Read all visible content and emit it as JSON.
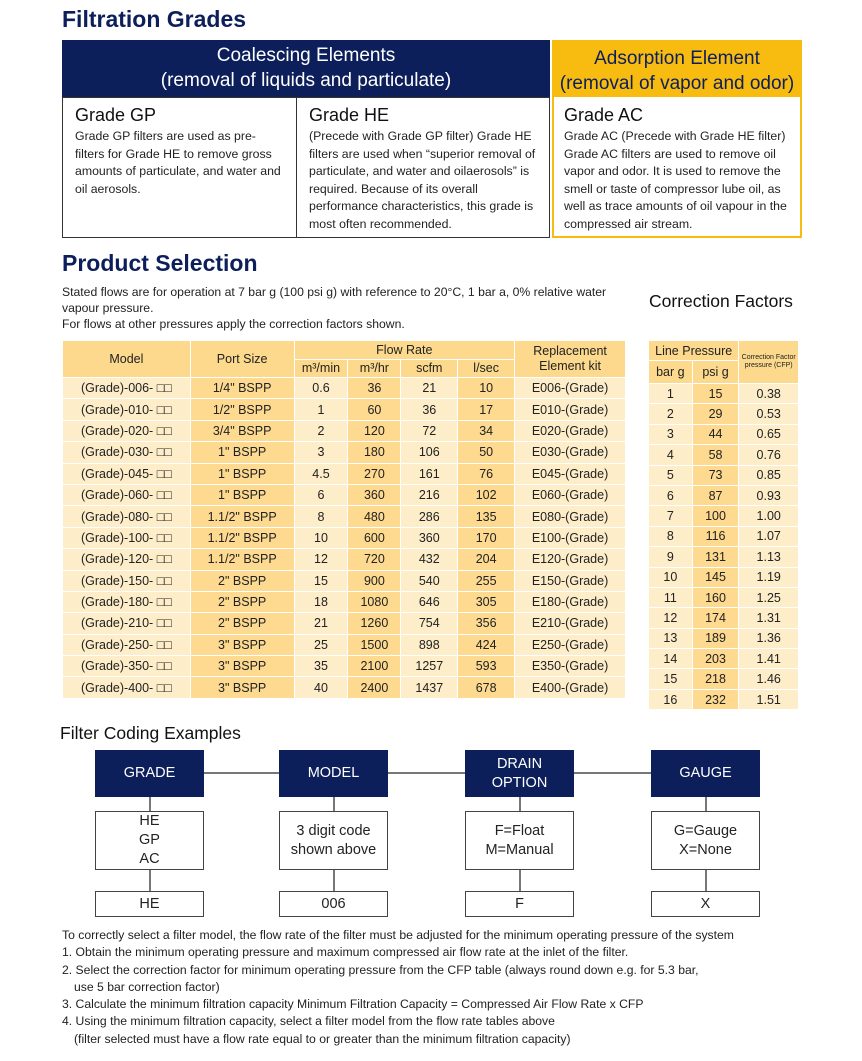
{
  "grades": {
    "title": "Filtration Grades",
    "coalescing": {
      "title": "Coalescing Elements",
      "subtitle": "(removal of liquids and particulate)"
    },
    "adsorption": {
      "title": "Adsorption Element",
      "subtitle": "(removal of vapor and odor)"
    },
    "gp": {
      "title": "Grade GP",
      "text": "Grade GP filters are used as pre-filters for Grade HE to remove gross amounts of particulate, and water and oil aerosols."
    },
    "he": {
      "title": "Grade HE",
      "text": "(Precede with Grade GP filter) Grade HE filters are used when “superior removal of particulate, and water and oilaerosols” is required. Because of its overall performance characteristics, this grade is most often recommended."
    },
    "ac": {
      "title": "Grade AC",
      "text": "Grade AC (Precede with Grade HE filter) Grade AC filters are used to remove oil vapor and odor. It is used to remove the smell or taste of compressor lube oil, as well as trace amounts of oil vapour in the compressed air stream."
    }
  },
  "product": {
    "title": "Product Selection",
    "intro1": "Stated flows are for operation at 7 bar g (100 psi g) with reference to 20°C, 1 bar a, 0% relative water vapour pressure.",
    "intro2": "For flows at other pressures apply the correction factors shown.",
    "headers": {
      "model": "Model",
      "port": "Port Size",
      "flow": "Flow Rate",
      "m3min": "m³/min",
      "m3hr": "m³/hr",
      "scfm": "scfm",
      "lsec": "l/sec",
      "kit": "Replacement Element kit"
    },
    "rows": [
      [
        "(Grade)-006- □□",
        "1/4\" BSPP",
        "0.6",
        "36",
        "21",
        "10",
        "E006-(Grade)"
      ],
      [
        "(Grade)-010- □□",
        "1/2\" BSPP",
        "1",
        "60",
        "36",
        "17",
        "E010-(Grade)"
      ],
      [
        "(Grade)-020- □□",
        "3/4\" BSPP",
        "2",
        "120",
        "72",
        "34",
        "E020-(Grade)"
      ],
      [
        "(Grade)-030- □□",
        "1\" BSPP",
        "3",
        "180",
        "106",
        "50",
        "E030-(Grade)"
      ],
      [
        "(Grade)-045- □□",
        "1\" BSPP",
        "4.5",
        "270",
        "161",
        "76",
        "E045-(Grade)"
      ],
      [
        "(Grade)-060- □□",
        "1\" BSPP",
        "6",
        "360",
        "216",
        "102",
        "E060-(Grade)"
      ],
      [
        "(Grade)-080- □□",
        "1.1/2\" BSPP",
        "8",
        "480",
        "286",
        "135",
        "E080-(Grade)"
      ],
      [
        "(Grade)-100- □□",
        "1.1/2\" BSPP",
        "10",
        "600",
        "360",
        "170",
        "E100-(Grade)"
      ],
      [
        "(Grade)-120- □□",
        "1.1/2\" BSPP",
        "12",
        "720",
        "432",
        "204",
        "E120-(Grade)"
      ],
      [
        "(Grade)-150- □□",
        "2\" BSPP",
        "15",
        "900",
        "540",
        "255",
        "E150-(Grade)"
      ],
      [
        "(Grade)-180- □□",
        "2\" BSPP",
        "18",
        "1080",
        "646",
        "305",
        "E180-(Grade)"
      ],
      [
        "(Grade)-210- □□",
        "2\" BSPP",
        "21",
        "1260",
        "754",
        "356",
        "E210-(Grade)"
      ],
      [
        "(Grade)-250- □□",
        "3\" BSPP",
        "25",
        "1500",
        "898",
        "424",
        "E250-(Grade)"
      ],
      [
        "(Grade)-350- □□",
        "3\" BSPP",
        "35",
        "2100",
        "1257",
        "593",
        "E350-(Grade)"
      ],
      [
        "(Grade)-400- □□",
        "3\" BSPP",
        "40",
        "2400",
        "1437",
        "678",
        "E400-(Grade)"
      ]
    ]
  },
  "correction": {
    "title": "Correction  Factors",
    "headers": {
      "line": "Line Pressure",
      "bar": "bar g",
      "psi": "psi g",
      "cfp": "Correction Factor pressure (CFP)"
    },
    "rows": [
      [
        "1",
        "15",
        "0.38"
      ],
      [
        "2",
        "29",
        "0.53"
      ],
      [
        "3",
        "44",
        "0.65"
      ],
      [
        "4",
        "58",
        "0.76"
      ],
      [
        "5",
        "73",
        "0.85"
      ],
      [
        "6",
        "87",
        "0.93"
      ],
      [
        "7",
        "100",
        "1.00"
      ],
      [
        "8",
        "116",
        "1.07"
      ],
      [
        "9",
        "131",
        "1.13"
      ],
      [
        "10",
        "145",
        "1.19"
      ],
      [
        "11",
        "160",
        "1.25"
      ],
      [
        "12",
        "174",
        "1.31"
      ],
      [
        "13",
        "189",
        "1.36"
      ],
      [
        "14",
        "203",
        "1.41"
      ],
      [
        "15",
        "218",
        "1.46"
      ],
      [
        "16",
        "232",
        "1.51"
      ]
    ]
  },
  "coding": {
    "title": "Filter Coding Examples",
    "columns": [
      {
        "head": "GRADE",
        "options": [
          "HE",
          "GP",
          "AC"
        ],
        "example": "HE"
      },
      {
        "head": "MODEL",
        "options": [
          "3 digit code",
          "shown above"
        ],
        "example": "006"
      },
      {
        "head": "DRAIN OPTION",
        "options": [
          "F=Float",
          "M=Manual"
        ],
        "example": "F"
      },
      {
        "head": "GAUGE",
        "options": [
          "G=Gauge",
          "X=None"
        ],
        "example": "X"
      }
    ]
  },
  "steps": {
    "intro": "To correctly select a filter model, the flow rate of the filter must be adjusted for the minimum operating pressure of the system",
    "items": [
      "1. Obtain the minimum operating pressure and maximum compressed air flow rate at the inlet of the filter.",
      "2. Select the correction factor for minimum operating pressure from the CFP table (always round down e.g. for 5.3 bar,",
      "use 5 bar correction factor)",
      "3. Calculate the minimum filtration capacity Minimum Filtration Capacity = Compressed Air Flow Rate x CFP",
      "4. Using the minimum filtration capacity, select a filter model from the flow rate tables above",
      "(filter selected must have a flow rate equal to or greater than the minimum filtration capacity)"
    ]
  },
  "colors": {
    "navy": "#0c1f5b",
    "yellow": "#f8bb10",
    "table_light": "#fdedc9",
    "table_dark": "#fdda90"
  }
}
